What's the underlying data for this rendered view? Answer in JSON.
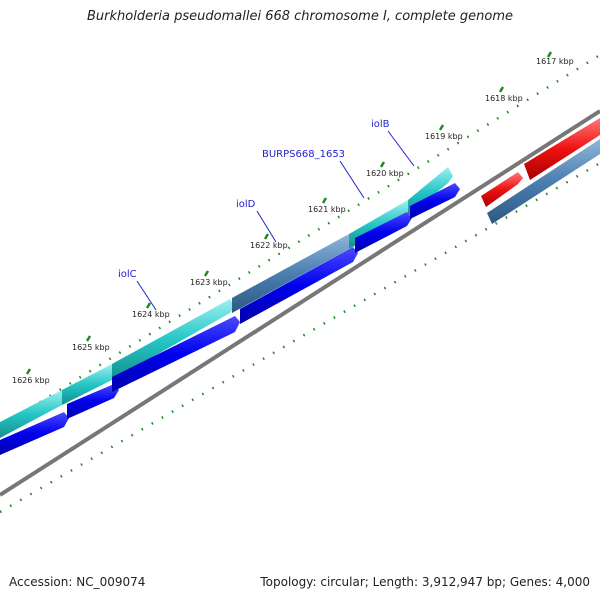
{
  "header": {
    "title": "Burkholderia pseudomallei 668 chromosome I, complete genome"
  },
  "footer": {
    "accession": "Accession: NC_009074",
    "topology": "Topology: circular; Length: 3,912,947 bp; Genes: 4,000"
  },
  "scale": {
    "ticks": [
      {
        "label": "1617 kbp"
      },
      {
        "label": "1618 kbp"
      },
      {
        "label": "1619 kbp"
      },
      {
        "label": "1620 kbp"
      },
      {
        "label": "1621 kbp"
      },
      {
        "label": "1622 kbp"
      },
      {
        "label": "1623 kbp"
      },
      {
        "label": "1624 kbp"
      },
      {
        "label": "1625 kbp"
      },
      {
        "label": "1626 kbp"
      }
    ]
  },
  "genes": [
    {
      "label": "iolB"
    },
    {
      "label": "BURPS668_1653"
    },
    {
      "label": "iolD"
    },
    {
      "label": "iolC"
    }
  ],
  "colors": {
    "cds": "#0000ee",
    "gene_cyan": "#26c6c6",
    "gene_steel": "#4a7fb0",
    "gene_red": "#ee1111",
    "backbone": "#777777",
    "tick": "#1f8a1f",
    "label": "#2222cc"
  }
}
